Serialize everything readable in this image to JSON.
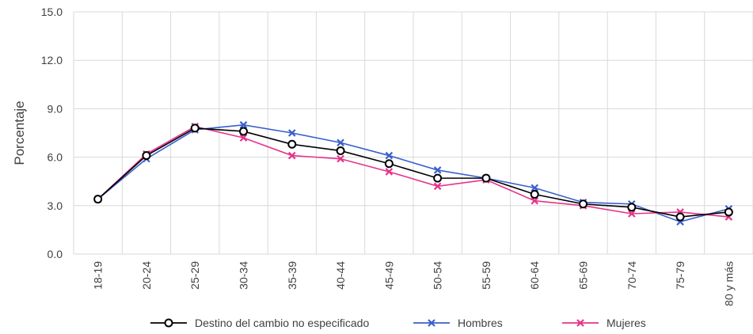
{
  "chart_data": {
    "type": "line",
    "title": "",
    "xlabel": "",
    "ylabel": "Porcentaje",
    "ylim": [
      0,
      15
    ],
    "yticks": [
      "0.0",
      "3.0",
      "6.0",
      "9.0",
      "12.0",
      "15.0"
    ],
    "grid": true,
    "legend_position": "bottom",
    "categories": [
      "18-19",
      "20-24",
      "25-29",
      "30-34",
      "35-39",
      "40-44",
      "45-49",
      "50-54",
      "55-59",
      "60-64",
      "65-69",
      "70-74",
      "75-79",
      "80 y más"
    ],
    "series": [
      {
        "name": "Destino del cambio no especificado",
        "color": "#000000",
        "marker": "circle",
        "values": [
          3.4,
          6.1,
          7.8,
          7.6,
          6.8,
          6.4,
          5.6,
          4.7,
          4.7,
          3.7,
          3.1,
          2.9,
          2.3,
          2.6
        ]
      },
      {
        "name": "Hombres",
        "color": "#3a5fcd",
        "marker": "x",
        "values": [
          3.4,
          5.9,
          7.7,
          8.0,
          7.5,
          6.9,
          6.1,
          5.2,
          4.7,
          4.1,
          3.2,
          3.1,
          2.0,
          2.8
        ]
      },
      {
        "name": "Mujeres",
        "color": "#e6338a",
        "marker": "x",
        "values": [
          3.4,
          6.2,
          7.9,
          7.2,
          6.1,
          5.9,
          5.1,
          4.2,
          4.6,
          3.3,
          3.0,
          2.5,
          2.6,
          2.3
        ]
      }
    ]
  }
}
